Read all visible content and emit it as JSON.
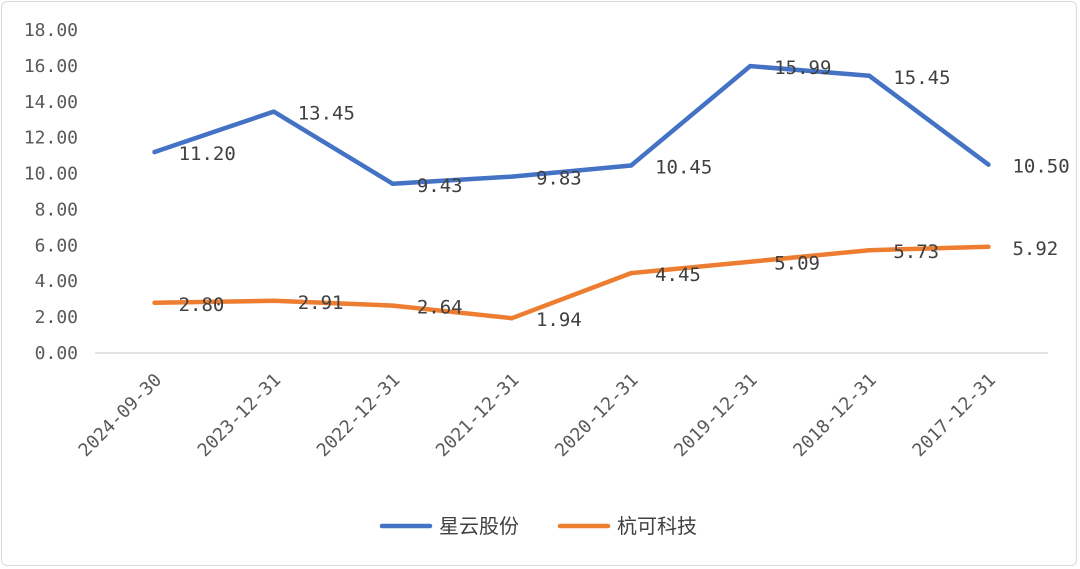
{
  "chart_data": {
    "type": "line",
    "title": "",
    "xlabel": "",
    "ylabel": "",
    "categories": [
      "2024-09-30",
      "2023-12-31",
      "2022-12-31",
      "2021-12-31",
      "2020-12-31",
      "2019-12-31",
      "2018-12-31",
      "2017-12-31"
    ],
    "series": [
      {
        "name": "星云股份",
        "color": "#4472c4",
        "values": [
          11.2,
          13.45,
          9.43,
          9.83,
          10.45,
          15.99,
          15.45,
          10.5
        ],
        "labels": [
          "11.20",
          "13.45",
          "9.43",
          "9.83",
          "10.45",
          "15.99",
          "15.45",
          "10.50"
        ]
      },
      {
        "name": "杭可科技",
        "color": "#ed7d31",
        "values": [
          2.8,
          2.91,
          2.64,
          1.94,
          4.45,
          5.09,
          5.73,
          5.92
        ],
        "labels": [
          "2.80",
          "2.91",
          "2.64",
          "1.94",
          "4.45",
          "5.09",
          "5.73",
          "5.92"
        ]
      }
    ],
    "ylim": [
      0,
      18
    ],
    "yticks": [
      "0.00",
      "2.00",
      "4.00",
      "6.00",
      "8.00",
      "10.00",
      "12.00",
      "14.00",
      "16.00",
      "18.00"
    ],
    "grid": false,
    "legend": "bottom"
  }
}
